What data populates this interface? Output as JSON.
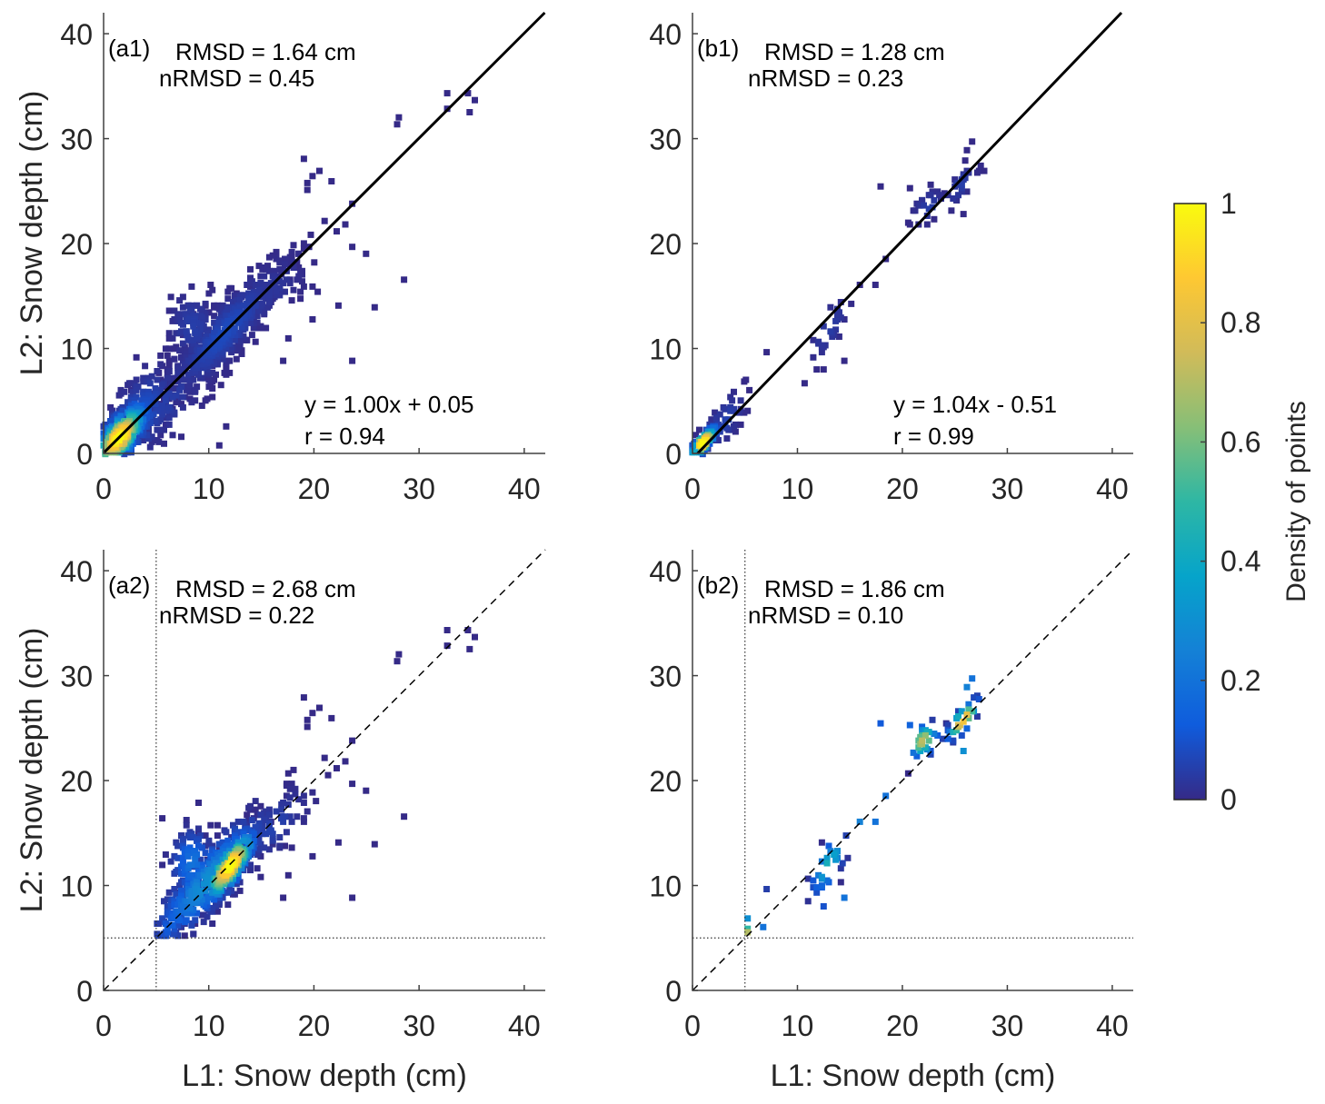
{
  "chart_data": [
    {
      "id": "a1",
      "type": "scatter",
      "panel_label": "(a1)",
      "rmsd": "RMSD = 1.64 cm",
      "nrmsd": "nRMSD = 0.45",
      "equation": "y = 1.00x + 0.05",
      "r": "r = 0.94",
      "fit": {
        "slope": 1.0,
        "intercept": 0.05,
        "style": "solid"
      },
      "threshold": null,
      "xlabel": "",
      "ylabel": "L2: Snow depth (cm)",
      "xlim": [
        0,
        42
      ],
      "ylim": [
        0,
        42
      ],
      "xticks": [
        "0",
        "10",
        "20",
        "30",
        "40"
      ],
      "yticks": [
        "0",
        "10",
        "20",
        "30",
        "40"
      ],
      "clusters": [
        {
          "center": [
            1.5,
            1.5
          ],
          "sx": 1.4,
          "slope": 0.9,
          "sy": 1.2,
          "n": 400,
          "peak": 1.0
        },
        {
          "center": [
            3,
            3
          ],
          "sx": 2,
          "slope": 0.9,
          "sy": 2.2,
          "n": 220,
          "peak": 0.12
        },
        {
          "center": [
            11.5,
            11.5
          ],
          "sx": 3,
          "slope": 1.0,
          "sy": 1.6,
          "n": 500,
          "peak": 0.08
        },
        {
          "center": [
            8.5,
            12
          ],
          "sx": 1.2,
          "slope": 0,
          "sy": 2,
          "n": 120,
          "peak": 0.05
        },
        {
          "center": [
            16,
            15.5
          ],
          "sx": 2,
          "slope": 0.8,
          "sy": 1.6,
          "n": 80,
          "peak": 0.03
        },
        {
          "center": [
            6,
            5
          ],
          "sx": 2,
          "slope": 0.8,
          "sy": 2,
          "n": 80,
          "peak": 0.05
        }
      ],
      "points": [
        [
          32.6,
          34.4,
          0
        ],
        [
          34.6,
          34.3,
          0
        ],
        [
          35.3,
          33.6,
          0
        ],
        [
          32.6,
          32.9,
          0
        ],
        [
          34.8,
          32.5,
          0
        ],
        [
          28.1,
          32.0,
          0
        ],
        [
          27.9,
          31.4,
          0
        ],
        [
          19.0,
          28.0,
          0
        ],
        [
          19.8,
          26.5,
          0
        ],
        [
          20.6,
          27.0,
          0
        ],
        [
          19.3,
          25.7,
          0
        ],
        [
          19.4,
          25.1,
          0
        ],
        [
          21.7,
          25.9,
          0
        ],
        [
          23.7,
          23.8,
          0
        ],
        [
          21.0,
          22.2,
          0
        ],
        [
          23.0,
          21.9,
          0
        ],
        [
          22.2,
          21.1,
          0
        ],
        [
          23.6,
          19.7,
          0
        ],
        [
          24.9,
          19.1,
          0
        ],
        [
          28.5,
          16.6,
          0
        ],
        [
          25.8,
          14.0,
          0
        ],
        [
          22.3,
          14.1,
          0
        ],
        [
          19.8,
          12.7,
          0
        ],
        [
          23.7,
          8.9,
          0
        ],
        [
          11.7,
          2.5,
          0
        ],
        [
          11.0,
          0.7,
          0
        ],
        [
          17.1,
          8.8,
          0
        ],
        [
          17.6,
          11.0,
          0
        ]
      ]
    },
    {
      "id": "b1",
      "type": "scatter",
      "panel_label": "(b1)",
      "rmsd": "RMSD = 1.28 cm",
      "nrmsd": "nRMSD = 0.23",
      "equation": "y = 1.04x - 0.51",
      "r": "r = 0.99",
      "fit": {
        "slope": 1.04,
        "intercept": -0.51,
        "style": "solid"
      },
      "threshold": null,
      "xlabel": "",
      "ylabel": "",
      "xlim": [
        0,
        42
      ],
      "ylim": [
        0,
        42
      ],
      "xticks": [
        "0",
        "10",
        "20",
        "30",
        "40"
      ],
      "yticks": [
        "0",
        "10",
        "20",
        "30",
        "40"
      ],
      "clusters": [
        {
          "center": [
            1,
            1
          ],
          "sx": 0.7,
          "slope": 1,
          "sy": 0.5,
          "n": 90,
          "peak": 1.0
        },
        {
          "center": [
            3,
            3
          ],
          "sx": 1.2,
          "slope": 1,
          "sy": 1.1,
          "n": 45,
          "peak": 0.06
        },
        {
          "center": [
            13,
            12
          ],
          "sx": 1,
          "slope": 1.2,
          "sy": 1.2,
          "n": 30,
          "peak": 0.05
        },
        {
          "center": [
            22.5,
            23.5
          ],
          "sx": 0.8,
          "slope": 0.5,
          "sy": 0.9,
          "n": 25,
          "peak": 0.05
        },
        {
          "center": [
            25.5,
            25.5
          ],
          "sx": 0.9,
          "slope": 1,
          "sy": 0.7,
          "n": 30,
          "peak": 0.05
        }
      ],
      "points": [
        [
          18,
          25.4,
          0
        ],
        [
          20.7,
          25.3,
          0
        ],
        [
          26.6,
          29.8,
          0
        ],
        [
          26.2,
          28.9,
          0
        ],
        [
          7,
          9.6,
          0
        ],
        [
          14.5,
          8.9,
          0
        ],
        [
          18.5,
          18.5,
          0
        ],
        [
          17.5,
          16,
          0
        ],
        [
          16,
          16,
          0
        ],
        [
          12.5,
          8,
          0
        ],
        [
          25.8,
          22.8,
          0
        ],
        [
          5,
          6.8,
          0
        ],
        [
          5.5,
          6,
          0
        ]
      ]
    },
    {
      "id": "a2",
      "type": "scatter",
      "panel_label": "(a2)",
      "rmsd": "RMSD = 2.68 cm",
      "nrmsd": "nRMSD = 0.22",
      "fit": {
        "slope": 1,
        "intercept": 0,
        "style": "dashed"
      },
      "threshold": 5,
      "xlabel": "L1: Snow depth (cm)",
      "ylabel": "L2: Snow depth (cm)",
      "xlim": [
        0,
        42
      ],
      "ylim": [
        0,
        42
      ],
      "xticks": [
        "0",
        "10",
        "20",
        "30",
        "40"
      ],
      "yticks": [
        "0",
        "10",
        "20",
        "30",
        "40"
      ],
      "clusters": [
        {
          "center": [
            12,
            11.8
          ],
          "sx": 1.3,
          "slope": 1.1,
          "sy": 1.1,
          "n": 260,
          "peak": 1.0
        },
        {
          "center": [
            10,
            10.5
          ],
          "sx": 3,
          "slope": 1,
          "sy": 1.8,
          "n": 320,
          "peak": 0.3
        },
        {
          "center": [
            8.5,
            12
          ],
          "sx": 1.2,
          "slope": 0,
          "sy": 2,
          "n": 120,
          "peak": 0.2
        },
        {
          "center": [
            6.5,
            6.5
          ],
          "sx": 1,
          "slope": 1,
          "sy": 1,
          "n": 40,
          "peak": 0.15
        },
        {
          "center": [
            16,
            15.5
          ],
          "sx": 2,
          "slope": 0.8,
          "sy": 1.6,
          "n": 70,
          "peak": 0.06
        }
      ],
      "points": [
        [
          32.6,
          34.4,
          0
        ],
        [
          34.6,
          34.3,
          0
        ],
        [
          35.3,
          33.6,
          0
        ],
        [
          32.6,
          32.9,
          0
        ],
        [
          34.8,
          32.5,
          0
        ],
        [
          28.1,
          32.0,
          0
        ],
        [
          27.9,
          31.4,
          0
        ],
        [
          19.0,
          28.0,
          0
        ],
        [
          19.8,
          26.5,
          0
        ],
        [
          20.6,
          27.0,
          0
        ],
        [
          19.3,
          25.7,
          0
        ],
        [
          19.4,
          25.1,
          0
        ],
        [
          21.7,
          25.9,
          0
        ],
        [
          23.7,
          23.8,
          0
        ],
        [
          21.0,
          22.2,
          0
        ],
        [
          23.0,
          21.9,
          0
        ],
        [
          22.2,
          21.1,
          0
        ],
        [
          23.6,
          19.7,
          0
        ],
        [
          24.9,
          19.1,
          0
        ],
        [
          28.5,
          16.6,
          0
        ],
        [
          25.8,
          14.0,
          0
        ],
        [
          22.3,
          14.1,
          0
        ],
        [
          19.8,
          12.7,
          0
        ],
        [
          23.7,
          8.9,
          0
        ],
        [
          17.1,
          8.8,
          0
        ],
        [
          17.6,
          11.0,
          0
        ]
      ]
    },
    {
      "id": "b2",
      "type": "scatter",
      "panel_label": "(b2)",
      "rmsd": "RMSD = 1.86 cm",
      "nrmsd": "nRMSD = 0.10",
      "fit": {
        "slope": 1,
        "intercept": 0,
        "style": "dashed"
      },
      "threshold": 5,
      "xlabel": "L1: Snow depth (cm)",
      "ylabel": "",
      "xlim": [
        0,
        42
      ],
      "ylim": [
        0,
        42
      ],
      "xticks": [
        "0",
        "10",
        "20",
        "30",
        "40"
      ],
      "yticks": [
        "0",
        "10",
        "20",
        "30",
        "40"
      ],
      "clusters": [
        {
          "center": [
            13,
            12
          ],
          "sx": 1,
          "slope": 1.2,
          "sy": 1.2,
          "n": 30,
          "peak": 0.45
        },
        {
          "center": [
            22,
            23.8
          ],
          "sx": 0.8,
          "slope": 0.5,
          "sy": 0.9,
          "n": 25,
          "peak": 0.72
        },
        {
          "center": [
            25.8,
            25.8
          ],
          "sx": 0.9,
          "slope": 1,
          "sy": 0.7,
          "n": 30,
          "peak": 0.9
        }
      ],
      "points": [
        [
          18,
          25.4,
          0.12
        ],
        [
          20.7,
          25.3,
          0.15
        ],
        [
          26.6,
          29.8,
          0.2
        ],
        [
          26.2,
          28.9,
          0.25
        ],
        [
          7,
          9.6,
          0.05
        ],
        [
          14.5,
          8.9,
          0.2
        ],
        [
          18.5,
          18.5,
          0.2
        ],
        [
          17.5,
          16,
          0.2
        ],
        [
          16,
          16,
          0.25
        ],
        [
          12.5,
          8,
          0.1
        ],
        [
          25.8,
          22.8,
          0.3
        ],
        [
          5.2,
          6.8,
          0.3
        ],
        [
          6.8,
          6,
          0.2
        ],
        [
          5.2,
          5.6,
          0.7
        ],
        [
          5.3,
          5.9,
          0.5
        ]
      ]
    }
  ],
  "colorbar": {
    "label": "Density of points",
    "ticks": [
      "0",
      "0.2",
      "0.4",
      "0.6",
      "0.8",
      "1"
    ],
    "tick_values": [
      0,
      0.2,
      0.4,
      0.6,
      0.8,
      1
    ],
    "range": [
      0,
      1
    ],
    "colormap": [
      "#352a87",
      "#0f5cdd",
      "#1481d6",
      "#06a4ca",
      "#2eb7a4",
      "#87bf77",
      "#d1bb59",
      "#fec832",
      "#f9fb0e"
    ]
  }
}
